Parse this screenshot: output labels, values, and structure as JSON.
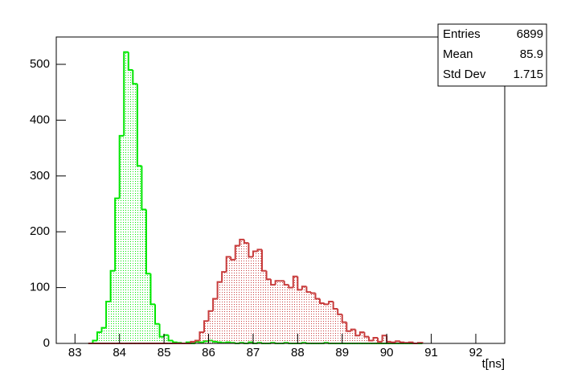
{
  "chart_data": {
    "type": "histogram",
    "x_label": "t[ns]",
    "xlim": [
      82.58,
      92.65
    ],
    "ylim": [
      0,
      549
    ],
    "xticks": [
      83,
      84,
      85,
      86,
      87,
      88,
      89,
      90,
      91,
      92
    ],
    "yticks": [
      0,
      100,
      200,
      300,
      400,
      500
    ],
    "bins": [
      83.3,
      83.4,
      83.5,
      83.6,
      83.7,
      83.8,
      83.9,
      84.0,
      84.1,
      84.2,
      84.3,
      84.4,
      84.5,
      84.6,
      84.7,
      84.8,
      84.9,
      85.0,
      85.1,
      85.2,
      85.3,
      85.4,
      85.5,
      85.6,
      85.7,
      85.8,
      85.9,
      86.0,
      86.1,
      86.2,
      86.3,
      86.4,
      86.5,
      86.6,
      86.7,
      86.8,
      86.9,
      87.0,
      87.1,
      87.2,
      87.3,
      87.4,
      87.5,
      87.6,
      87.7,
      87.8,
      87.9,
      88.0,
      88.1,
      88.2,
      88.3,
      88.4,
      88.5,
      88.6,
      88.7,
      88.8,
      88.9,
      89.0,
      89.1,
      89.2,
      89.3,
      89.4,
      89.5,
      89.6,
      89.7,
      89.8,
      89.9,
      90.0,
      90.1,
      90.2,
      90.3,
      90.4,
      90.5,
      90.6,
      90.7,
      90.8
    ],
    "series": [
      {
        "color": "#00e600",
        "values": [
          0,
          5,
          20,
          28,
          75,
          130,
          260,
          372,
          522,
          490,
          465,
          318,
          240,
          125,
          70,
          35,
          12,
          15,
          5,
          2,
          1,
          0,
          2,
          0,
          3,
          2,
          4,
          5,
          3,
          2,
          1,
          2,
          1,
          0,
          1,
          0,
          2,
          0,
          1,
          0,
          0,
          1,
          0,
          0,
          1,
          0,
          0,
          0,
          1,
          0,
          0,
          0,
          0,
          1,
          0,
          0,
          0,
          0,
          0,
          0,
          0,
          0,
          0,
          0,
          0,
          0,
          0,
          0,
          0,
          0,
          0,
          0,
          0,
          0,
          0
        ]
      },
      {
        "color": "#c83c3c",
        "values": [
          0,
          0,
          0,
          0,
          0,
          0,
          0,
          0,
          0,
          0,
          0,
          0,
          0,
          0,
          0,
          0,
          0,
          0,
          0,
          0,
          0,
          0,
          0,
          3,
          5,
          20,
          40,
          58,
          80,
          110,
          128,
          155,
          150,
          175,
          186,
          180,
          155,
          165,
          168,
          130,
          115,
          105,
          112,
          112,
          105,
          100,
          120,
          96,
          102,
          92,
          90,
          80,
          72,
          70,
          75,
          62,
          52,
          38,
          22,
          25,
          14,
          20,
          12,
          5,
          10,
          3,
          14,
          3,
          2,
          4,
          2,
          1,
          2,
          0,
          1
        ]
      }
    ],
    "stats": [
      {
        "label": "Entries",
        "value": 6899
      },
      {
        "label": "Mean",
        "value": 85.9
      },
      {
        "label": "Std Dev",
        "value": 1.715
      }
    ]
  }
}
